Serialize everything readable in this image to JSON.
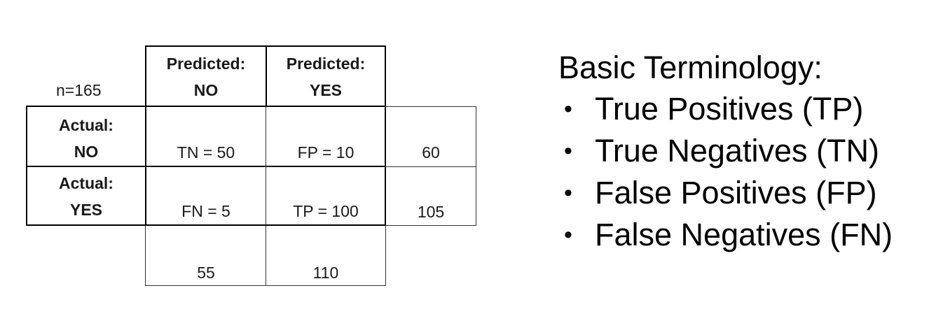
{
  "matrix": {
    "n_label": "n=165",
    "col_headers": [
      {
        "line1": "Predicted:",
        "line2": "NO"
      },
      {
        "line1": "Predicted:",
        "line2": "YES"
      }
    ],
    "rows": [
      {
        "line1": "Actual:",
        "line2": "NO",
        "cells": [
          "TN = 50",
          "FP = 10"
        ],
        "total": "60"
      },
      {
        "line1": "Actual:",
        "line2": "YES",
        "cells": [
          "FN = 5",
          "TP = 100"
        ],
        "total": "105"
      }
    ],
    "col_totals": [
      "55",
      "110"
    ]
  },
  "terminology": {
    "title": "Basic Terminology:",
    "bullet_symbol": "•",
    "items": [
      "True Positives (TP)",
      "True Negatives (TN)",
      "False Positives (FP)",
      "False Negatives (FN)"
    ]
  }
}
